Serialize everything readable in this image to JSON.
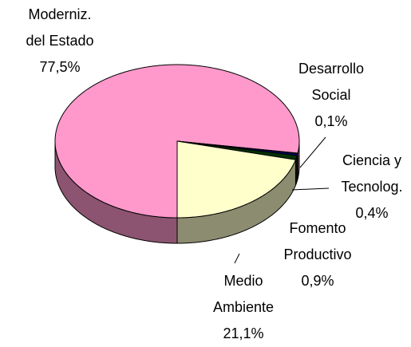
{
  "chart_data": {
    "type": "pie",
    "categories": [
      "Moderniz.\ndel Estado",
      "Desarrollo\nSocial",
      "Ciencia y\nTecnolog.",
      "Fomento\nProductivo",
      "Medio\nAmbiente"
    ],
    "values": [
      77.5,
      0.1,
      0.4,
      0.9,
      21.1
    ],
    "value_labels": [
      "77,5%",
      "0,1%",
      "0,4%",
      "0,9%",
      "21,1%"
    ],
    "colors": [
      "#ff99cc",
      "#ff0000",
      "#000080",
      "#003300",
      "#ffffcc"
    ]
  }
}
